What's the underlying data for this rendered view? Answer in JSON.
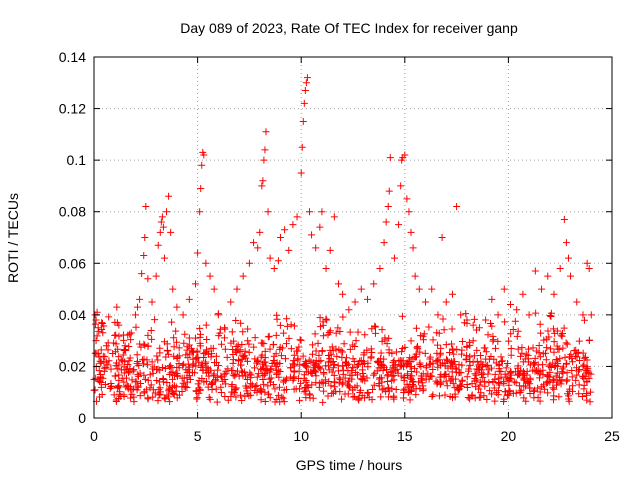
{
  "chart_data": {
    "type": "scatter",
    "title": "Day 089 of 2023, Rate Of TEC Index for receiver ganp",
    "xlabel": "GPS time / hours",
    "ylabel": "ROTI / TECUs",
    "xlim": [
      0,
      25
    ],
    "ylim": [
      0,
      0.14
    ],
    "xticks": [
      0,
      5,
      10,
      15,
      20,
      25
    ],
    "xtick_labels": [
      "0",
      "5",
      "10",
      "15",
      "20",
      "25"
    ],
    "yticks": [
      0,
      0.02,
      0.04,
      0.06,
      0.08,
      0.1,
      0.12,
      0.14
    ],
    "ytick_labels": [
      "0",
      "0.02",
      "0.04",
      "0.06",
      "0.08",
      "0.1",
      "0.12",
      "0.14"
    ],
    "grid": true,
    "marker": "+",
    "color": "#ff0000",
    "series": [
      {
        "name": "ROTI",
        "points": [
          [
            0.05,
            0.04
          ],
          [
            0.1,
            0.038
          ],
          [
            0.15,
            0.041
          ],
          [
            0.2,
            0.035
          ],
          [
            0.1,
            0.03
          ],
          [
            0.2,
            0.025
          ],
          [
            0.3,
            0.022
          ],
          [
            0.6,
            0.028
          ],
          [
            0.9,
            0.025
          ],
          [
            1.0,
            0.032
          ],
          [
            1.1,
            0.043
          ],
          [
            1.2,
            0.036
          ],
          [
            1.5,
            0.028
          ],
          [
            1.8,
            0.033
          ],
          [
            2.0,
            0.04
          ],
          [
            2.1,
            0.043
          ],
          [
            2.2,
            0.046
          ],
          [
            2.3,
            0.056
          ],
          [
            2.4,
            0.063
          ],
          [
            2.45,
            0.07
          ],
          [
            2.5,
            0.082
          ],
          [
            2.6,
            0.054
          ],
          [
            2.8,
            0.045
          ],
          [
            3.0,
            0.055
          ],
          [
            3.1,
            0.067
          ],
          [
            3.2,
            0.072
          ],
          [
            3.25,
            0.076
          ],
          [
            3.3,
            0.078
          ],
          [
            3.35,
            0.074
          ],
          [
            3.4,
            0.062
          ],
          [
            3.5,
            0.08
          ],
          [
            3.6,
            0.086
          ],
          [
            3.7,
            0.072
          ],
          [
            3.8,
            0.05
          ],
          [
            4.0,
            0.043
          ],
          [
            4.3,
            0.04
          ],
          [
            4.6,
            0.046
          ],
          [
            4.9,
            0.052
          ],
          [
            5.0,
            0.064
          ],
          [
            5.1,
            0.08
          ],
          [
            5.15,
            0.089
          ],
          [
            5.2,
            0.098
          ],
          [
            5.25,
            0.103
          ],
          [
            5.3,
            0.102
          ],
          [
            5.4,
            0.06
          ],
          [
            5.6,
            0.055
          ],
          [
            5.8,
            0.05
          ],
          [
            6.0,
            0.04
          ],
          [
            6.3,
            0.035
          ],
          [
            6.6,
            0.045
          ],
          [
            6.9,
            0.05
          ],
          [
            7.2,
            0.055
          ],
          [
            7.5,
            0.06
          ],
          [
            7.7,
            0.068
          ],
          [
            7.9,
            0.066
          ],
          [
            8.0,
            0.072
          ],
          [
            8.1,
            0.09
          ],
          [
            8.15,
            0.092
          ],
          [
            8.2,
            0.1
          ],
          [
            8.25,
            0.104
          ],
          [
            8.3,
            0.111
          ],
          [
            8.4,
            0.08
          ],
          [
            8.5,
            0.062
          ],
          [
            8.7,
            0.058
          ],
          [
            8.9,
            0.061
          ],
          [
            9.0,
            0.07
          ],
          [
            9.2,
            0.073
          ],
          [
            9.4,
            0.065
          ],
          [
            9.6,
            0.075
          ],
          [
            9.8,
            0.078
          ],
          [
            10.0,
            0.095
          ],
          [
            10.05,
            0.105
          ],
          [
            10.1,
            0.115
          ],
          [
            10.15,
            0.122
          ],
          [
            10.2,
            0.127
          ],
          [
            10.25,
            0.13
          ],
          [
            10.3,
            0.132
          ],
          [
            10.4,
            0.08
          ],
          [
            10.5,
            0.071
          ],
          [
            10.7,
            0.066
          ],
          [
            10.9,
            0.074
          ],
          [
            11.0,
            0.08
          ],
          [
            11.2,
            0.058
          ],
          [
            11.4,
            0.065
          ],
          [
            11.6,
            0.078
          ],
          [
            11.8,
            0.052
          ],
          [
            12.0,
            0.048
          ],
          [
            12.3,
            0.042
          ],
          [
            12.6,
            0.045
          ],
          [
            12.9,
            0.05
          ],
          [
            13.2,
            0.046
          ],
          [
            13.5,
            0.052
          ],
          [
            13.8,
            0.058
          ],
          [
            14.0,
            0.068
          ],
          [
            14.1,
            0.076
          ],
          [
            14.2,
            0.082
          ],
          [
            14.25,
            0.088
          ],
          [
            14.3,
            0.101
          ],
          [
            14.5,
            0.062
          ],
          [
            14.7,
            0.075
          ],
          [
            14.8,
            0.09
          ],
          [
            14.85,
            0.1
          ],
          [
            14.9,
            0.101
          ],
          [
            15.0,
            0.102
          ],
          [
            15.1,
            0.085
          ],
          [
            15.2,
            0.08
          ],
          [
            15.3,
            0.072
          ],
          [
            15.4,
            0.066
          ],
          [
            15.5,
            0.055
          ],
          [
            15.7,
            0.05
          ],
          [
            16.0,
            0.045
          ],
          [
            16.3,
            0.05
          ],
          [
            16.6,
            0.04
          ],
          [
            16.8,
            0.07
          ],
          [
            17.0,
            0.045
          ],
          [
            17.3,
            0.048
          ],
          [
            17.5,
            0.082
          ],
          [
            17.7,
            0.04
          ],
          [
            18.0,
            0.038
          ],
          [
            18.3,
            0.036
          ],
          [
            18.6,
            0.035
          ],
          [
            18.9,
            0.038
          ],
          [
            19.2,
            0.046
          ],
          [
            19.5,
            0.04
          ],
          [
            19.8,
            0.05
          ],
          [
            20.1,
            0.044
          ],
          [
            20.4,
            0.042
          ],
          [
            20.7,
            0.048
          ],
          [
            21.0,
            0.04
          ],
          [
            21.3,
            0.057
          ],
          [
            21.6,
            0.05
          ],
          [
            21.9,
            0.055
          ],
          [
            22.2,
            0.048
          ],
          [
            22.5,
            0.058
          ],
          [
            22.7,
            0.077
          ],
          [
            22.8,
            0.068
          ],
          [
            22.9,
            0.062
          ],
          [
            23.0,
            0.055
          ],
          [
            23.3,
            0.045
          ],
          [
            23.6,
            0.04
          ],
          [
            23.8,
            0.06
          ],
          [
            23.9,
            0.058
          ],
          [
            24.0,
            0.04
          ]
        ]
      }
    ]
  }
}
